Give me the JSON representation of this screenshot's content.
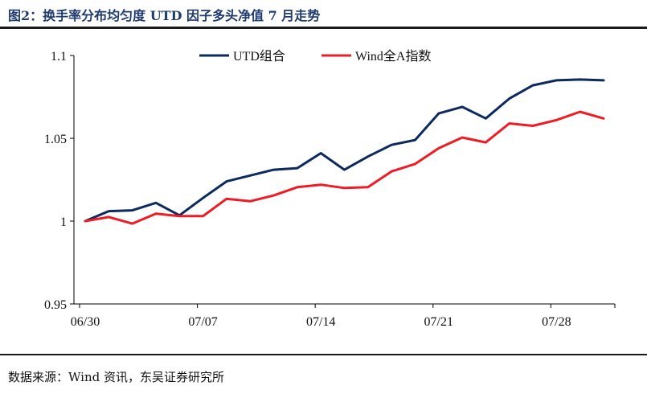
{
  "header": {
    "title": "图2：换手率分布均匀度 UTD 因子多头净值 7 月走势"
  },
  "footer": {
    "source": "数据来源：Wind 资讯，东吴证券研究所"
  },
  "chart_data": {
    "type": "line",
    "title": "图2：换手率分布均匀度 UTD 因子多头净值 7 月走势",
    "xlabel": "",
    "ylabel": "",
    "ylim": [
      0.95,
      1.1
    ],
    "yticks": [
      0.95,
      1,
      1.05,
      1.1
    ],
    "ytick_labels": [
      "0.95",
      "1",
      "1.05",
      "1.1"
    ],
    "x_labels": [
      {
        "index": 0,
        "label": "06/30"
      },
      {
        "index": 5,
        "label": "07/07"
      },
      {
        "index": 10,
        "label": "07/14"
      },
      {
        "index": 15,
        "label": "07/21"
      },
      {
        "index": 20,
        "label": "07/28"
      }
    ],
    "legend_position": "top-center",
    "grid": false,
    "x": [
      0,
      1,
      2,
      3,
      4,
      5,
      6,
      7,
      8,
      9,
      10,
      11,
      12,
      13,
      14,
      15,
      16,
      17,
      18,
      19,
      20,
      21,
      22
    ],
    "series": [
      {
        "name": "UTD组合",
        "color": "#0d2a5e",
        "values": [
          1.0,
          1.006,
          1.0065,
          1.011,
          1.0035,
          1.014,
          1.024,
          1.0275,
          1.031,
          1.032,
          1.041,
          1.031,
          1.039,
          1.046,
          1.049,
          1.065,
          1.069,
          1.062,
          1.074,
          1.082,
          1.085,
          1.0855,
          1.085
        ]
      },
      {
        "name": "Wind全A指数",
        "color": "#ee1c25",
        "values": [
          1.0,
          1.0025,
          0.9985,
          1.0045,
          1.003,
          1.003,
          1.0135,
          1.012,
          1.0155,
          1.0205,
          1.022,
          1.02,
          1.0205,
          1.03,
          1.0345,
          1.044,
          1.0505,
          1.0475,
          1.059,
          1.0575,
          1.061,
          1.066,
          1.062
        ]
      }
    ]
  }
}
